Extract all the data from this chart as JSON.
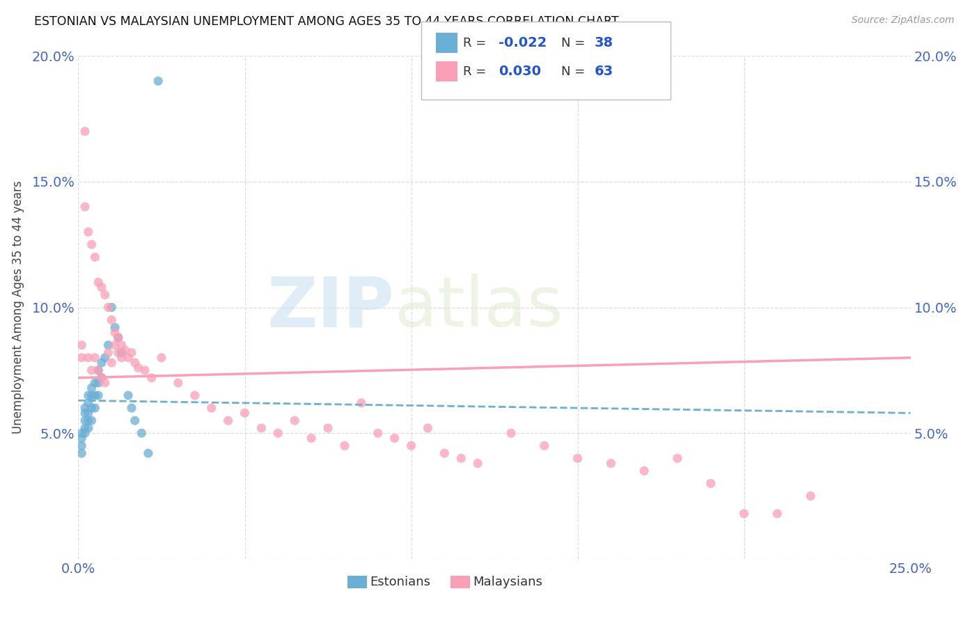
{
  "title": "ESTONIAN VS MALAYSIAN UNEMPLOYMENT AMONG AGES 35 TO 44 YEARS CORRELATION CHART",
  "source": "Source: ZipAtlas.com",
  "ylabel": "Unemployment Among Ages 35 to 44 years",
  "xlim": [
    0,
    0.25
  ],
  "ylim": [
    0,
    0.2
  ],
  "estonian_color": "#6baed6",
  "malaysian_color": "#fa9fb5",
  "estonian_line_color": "#6baed6",
  "malaysian_line_color": "#fa9fb5",
  "estonian_R": -0.022,
  "estonian_N": 38,
  "malaysian_R": 0.03,
  "malaysian_N": 63,
  "watermark_zip": "ZIP",
  "watermark_atlas": "atlas",
  "background_color": "#ffffff",
  "grid_color": "#dddddd",
  "legend_r_color": "#2255cc",
  "tick_color": "#4466cc",
  "estonians_x": [
    0.001,
    0.001,
    0.001,
    0.001,
    0.002,
    0.002,
    0.002,
    0.002,
    0.002,
    0.003,
    0.003,
    0.003,
    0.003,
    0.003,
    0.004,
    0.004,
    0.004,
    0.004,
    0.005,
    0.005,
    0.005,
    0.006,
    0.006,
    0.006,
    0.007,
    0.007,
    0.008,
    0.009,
    0.01,
    0.011,
    0.012,
    0.013,
    0.015,
    0.016,
    0.017,
    0.019,
    0.021,
    0.024
  ],
  "estonians_y": [
    0.05,
    0.048,
    0.045,
    0.042,
    0.06,
    0.058,
    0.055,
    0.052,
    0.05,
    0.065,
    0.062,
    0.058,
    0.055,
    0.052,
    0.068,
    0.065,
    0.06,
    0.055,
    0.07,
    0.065,
    0.06,
    0.075,
    0.07,
    0.065,
    0.078,
    0.072,
    0.08,
    0.085,
    0.1,
    0.092,
    0.088,
    0.082,
    0.065,
    0.06,
    0.055,
    0.05,
    0.042,
    0.19
  ],
  "malaysians_x": [
    0.001,
    0.001,
    0.002,
    0.002,
    0.003,
    0.003,
    0.004,
    0.004,
    0.005,
    0.005,
    0.006,
    0.006,
    0.007,
    0.007,
    0.008,
    0.008,
    0.009,
    0.009,
    0.01,
    0.01,
    0.011,
    0.011,
    0.012,
    0.012,
    0.013,
    0.013,
    0.014,
    0.015,
    0.016,
    0.017,
    0.018,
    0.02,
    0.022,
    0.025,
    0.03,
    0.035,
    0.04,
    0.045,
    0.05,
    0.055,
    0.06,
    0.065,
    0.07,
    0.075,
    0.08,
    0.085,
    0.09,
    0.095,
    0.1,
    0.105,
    0.11,
    0.115,
    0.12,
    0.13,
    0.14,
    0.15,
    0.16,
    0.17,
    0.18,
    0.19,
    0.2,
    0.21,
    0.22
  ],
  "malaysians_y": [
    0.085,
    0.08,
    0.14,
    0.17,
    0.13,
    0.08,
    0.125,
    0.075,
    0.12,
    0.08,
    0.11,
    0.075,
    0.108,
    0.072,
    0.105,
    0.07,
    0.1,
    0.082,
    0.095,
    0.078,
    0.09,
    0.085,
    0.088,
    0.082,
    0.085,
    0.08,
    0.083,
    0.08,
    0.082,
    0.078,
    0.076,
    0.075,
    0.072,
    0.08,
    0.07,
    0.065,
    0.06,
    0.055,
    0.058,
    0.052,
    0.05,
    0.055,
    0.048,
    0.052,
    0.045,
    0.062,
    0.05,
    0.048,
    0.045,
    0.052,
    0.042,
    0.04,
    0.038,
    0.05,
    0.045,
    0.04,
    0.038,
    0.035,
    0.04,
    0.03,
    0.018,
    0.018,
    0.025
  ]
}
